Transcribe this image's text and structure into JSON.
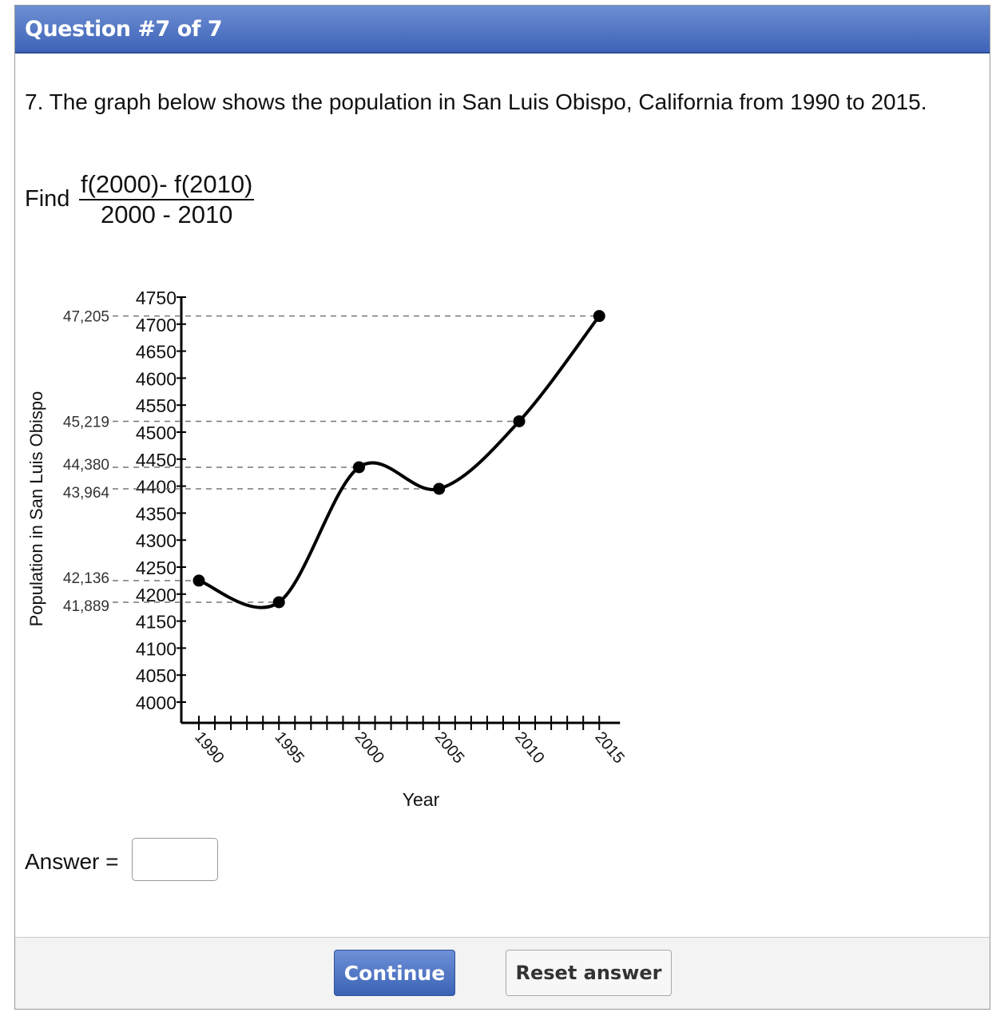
{
  "header": {
    "title": "Question #7 of 7"
  },
  "question": {
    "text": "7.  The graph below shows the population in San Luis Obispo, California from 1990 to 2015.",
    "find_label": "Find",
    "fraction_numerator": "f(2000)- f(2010)",
    "fraction_denominator": "2000 - 2010"
  },
  "chart_data": {
    "type": "line",
    "xlabel": "Year",
    "ylabel": "Population in San Luis Obispo",
    "x_ticks": [
      "1990",
      "1995",
      "2000",
      "2005",
      "2010",
      "2015"
    ],
    "y_ticks": [
      "4750",
      "4700",
      "4650",
      "4600",
      "4550",
      "4500",
      "4450",
      "4400",
      "4350",
      "4300",
      "4250",
      "4200",
      "4150",
      "4100",
      "4050",
      "4000"
    ],
    "xlim": [
      1990,
      2016
    ],
    "ylim": [
      4000,
      4750
    ],
    "points": [
      {
        "x": 1990,
        "y": 42136,
        "label": "42,136"
      },
      {
        "x": 1995,
        "y": 41889,
        "label": "41,889"
      },
      {
        "x": 2000,
        "y": 44380,
        "label": "44,380"
      },
      {
        "x": 2005,
        "y": 43964,
        "label": "43,964"
      },
      {
        "x": 2010,
        "y": 45219,
        "label": "45,219"
      },
      {
        "x": 2015,
        "y": 47205,
        "label": "47,205"
      }
    ],
    "plotted_y_axis_units": [
      4225,
      4185,
      4435,
      4395,
      4520,
      4715
    ],
    "guide_lines": "dashed"
  },
  "answer": {
    "label": "Answer =",
    "value": "",
    "placeholder": ""
  },
  "footer": {
    "continue_label": "Continue",
    "reset_label": "Reset answer"
  }
}
